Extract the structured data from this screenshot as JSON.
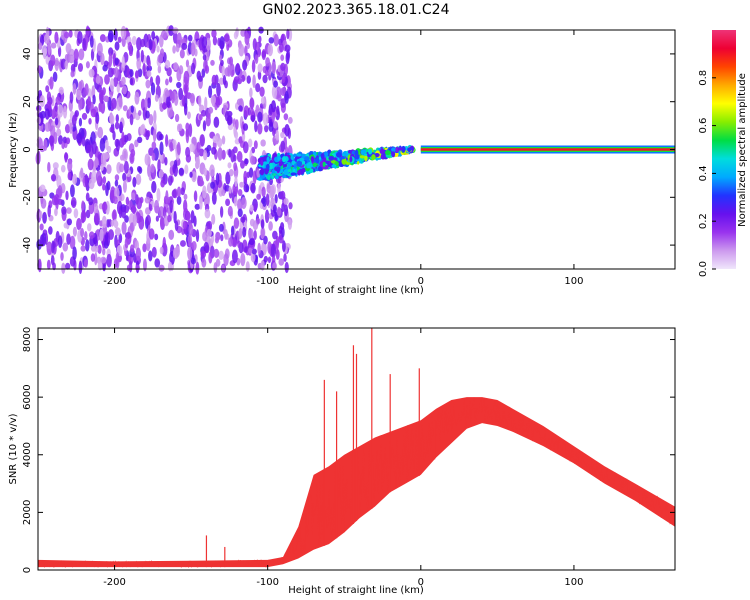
{
  "title": "GN02.2023.365.18.01.C24",
  "chart_data": [
    {
      "type": "heatmap",
      "xlabel": "Height of straight line (km)",
      "ylabel": "Frequency (Hz)",
      "xlim": [
        -250,
        166
      ],
      "ylim": [
        -50,
        50
      ],
      "xticks": [
        -200,
        -100,
        0,
        100
      ],
      "yticks": [
        -40,
        -20,
        0,
        20,
        40
      ],
      "colorbar": {
        "label": "Normalized spectral amplitude",
        "range": [
          0,
          1
        ],
        "ticks": [
          0.0,
          0.2,
          0.4,
          0.6,
          0.8
        ],
        "colors": [
          "#f0e6fb",
          "#cc99ee",
          "#9933ee",
          "#6611ee",
          "#2233ff",
          "#00aaff",
          "#00dddd",
          "#00dd44",
          "#88ee00",
          "#ffff00",
          "#ffaa00",
          "#ff4400",
          "#ee0033",
          "#ee3377"
        ]
      },
      "regions": [
        {
          "x_range": [
            -250,
            -95
          ],
          "description": "scattered weak noise",
          "amplitude_range": [
            0.05,
            0.25
          ],
          "freq_range": [
            -50,
            50
          ]
        },
        {
          "x_range": [
            -105,
            -5
          ],
          "description": "noisy signal converging toward 0 Hz",
          "amplitude_range": [
            0.2,
            0.75
          ],
          "freq_at_start": -8,
          "freq_at_end": 0
        },
        {
          "x_range": [
            0,
            166
          ],
          "description": "strong steady tone",
          "amplitude": 0.9,
          "freq": 0
        }
      ]
    },
    {
      "type": "line",
      "xlabel": "Height of straight line (km)",
      "ylabel": "SNR (10 * v/v)",
      "xlim": [
        -250,
        166
      ],
      "ylim": [
        0,
        8400
      ],
      "xticks": [
        -200,
        -100,
        0,
        100
      ],
      "yticks": [
        0,
        2000,
        4000,
        6000,
        8000
      ],
      "color": "#ee3333",
      "envelope": {
        "x": [
          -250,
          -200,
          -150,
          -100,
          -90,
          -80,
          -70,
          -60,
          -50,
          -40,
          -30,
          -20,
          -10,
          0,
          10,
          20,
          30,
          40,
          50,
          60,
          80,
          100,
          120,
          140,
          166
        ],
        "low": [
          100,
          100,
          100,
          100,
          200,
          400,
          700,
          900,
          1300,
          1800,
          2200,
          2700,
          3000,
          3300,
          3900,
          4400,
          4900,
          5100,
          5000,
          4800,
          4300,
          3700,
          3000,
          2400,
          1500
        ],
        "high": [
          350,
          300,
          320,
          350,
          450,
          1500,
          3300,
          3600,
          4000,
          4300,
          4600,
          4800,
          5000,
          5200,
          5600,
          5900,
          6000,
          6000,
          5900,
          5600,
          5000,
          4300,
          3600,
          3000,
          2200
        ]
      },
      "spikes": [
        {
          "x": -140,
          "y": 1200
        },
        {
          "x": -128,
          "y": 800
        },
        {
          "x": -63,
          "y": 6600
        },
        {
          "x": -55,
          "y": 6200
        },
        {
          "x": -44,
          "y": 7800
        },
        {
          "x": -42,
          "y": 7500
        },
        {
          "x": -32,
          "y": 8400
        },
        {
          "x": -20,
          "y": 6800
        },
        {
          "x": -1,
          "y": 7000
        },
        {
          "x": 9,
          "y": 5200
        }
      ]
    }
  ]
}
